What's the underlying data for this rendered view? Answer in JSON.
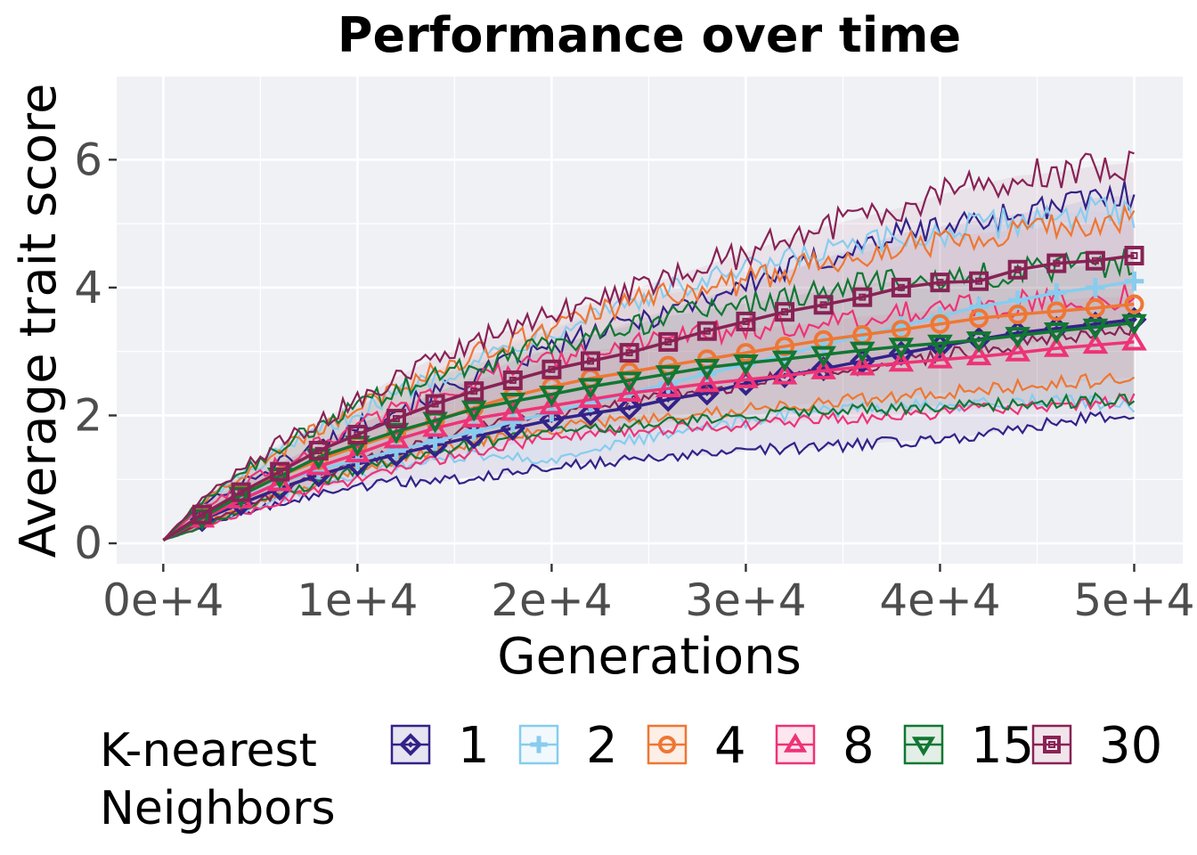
{
  "chart_data": {
    "type": "line",
    "title": "Performance over time",
    "xlabel": "Generations",
    "ylabel": "Average trait score",
    "xlim": [
      -2400,
      52500
    ],
    "ylim": [
      -0.32,
      7.3
    ],
    "x_ticks": [
      0,
      10000,
      20000,
      30000,
      40000,
      50000
    ],
    "x_tick_labels": [
      "0e+4",
      "1e+4",
      "2e+4",
      "3e+4",
      "4e+4",
      "5e+4"
    ],
    "y_ticks": [
      0,
      2,
      4,
      6
    ],
    "y_tick_labels": [
      "0",
      "2",
      "4",
      "6"
    ],
    "grid": true,
    "legend": {
      "title_lines": [
        "K-nearest",
        "Neighbors"
      ],
      "position": "bottom"
    },
    "x": [
      2000,
      4000,
      6000,
      8000,
      10000,
      12000,
      14000,
      16000,
      18000,
      20000,
      22000,
      24000,
      26000,
      28000,
      30000,
      32000,
      34000,
      36000,
      38000,
      40000,
      42000,
      44000,
      46000,
      48000,
      50000
    ],
    "series": [
      {
        "name": "1",
        "color": "#332288",
        "marker": "diamond",
        "mean": [
          0.37,
          0.62,
          0.86,
          1.07,
          1.24,
          1.39,
          1.53,
          1.67,
          1.8,
          1.93,
          2.03,
          2.12,
          2.25,
          2.35,
          2.5,
          2.62,
          2.73,
          2.85,
          2.97,
          3.08,
          3.19,
          3.29,
          3.36,
          3.43,
          3.5
        ],
        "lower": [
          0.25,
          0.45,
          0.62,
          0.76,
          0.88,
          0.97,
          0.95,
          1.05,
          1.1,
          1.2,
          1.25,
          1.3,
          1.35,
          1.38,
          1.45,
          1.48,
          1.5,
          1.55,
          1.6,
          1.62,
          1.7,
          1.8,
          1.88,
          1.98,
          1.95
        ],
        "upper": [
          0.6,
          0.95,
          1.25,
          1.55,
          1.85,
          2.1,
          2.35,
          2.6,
          2.85,
          3.05,
          3.25,
          3.45,
          3.65,
          3.85,
          4.05,
          4.25,
          4.45,
          4.65,
          4.85,
          4.95,
          5.05,
          5.15,
          5.25,
          5.4,
          5.45
        ]
      },
      {
        "name": "2",
        "color": "#88ccee",
        "marker": "plus",
        "mean": [
          0.4,
          0.7,
          0.95,
          1.15,
          1.3,
          1.45,
          1.6,
          1.75,
          1.9,
          2.05,
          2.2,
          2.35,
          2.5,
          2.65,
          2.8,
          2.95,
          3.1,
          3.25,
          3.4,
          3.55,
          3.7,
          3.8,
          3.92,
          4.0,
          4.1
        ],
        "lower": [
          0.28,
          0.5,
          0.7,
          0.9,
          1.05,
          1.2,
          1.3,
          1.4,
          1.35,
          1.3,
          1.45,
          1.6,
          1.7,
          1.8,
          1.9,
          2.0,
          2.05,
          2.1,
          2.15,
          2.15,
          2.2,
          2.2,
          2.25,
          2.2,
          2.15
        ],
        "upper": [
          0.65,
          1.05,
          1.4,
          1.75,
          2.05,
          2.35,
          2.6,
          2.85,
          3.1,
          3.35,
          3.6,
          3.8,
          3.95,
          4.1,
          4.25,
          4.4,
          4.55,
          4.65,
          4.75,
          4.85,
          4.95,
          5.05,
          5.15,
          5.2,
          5.1
        ]
      },
      {
        "name": "4",
        "color": "#ee7733",
        "marker": "circle",
        "mean": [
          0.45,
          0.78,
          1.05,
          1.3,
          1.52,
          1.72,
          1.92,
          2.12,
          2.3,
          2.45,
          2.58,
          2.68,
          2.78,
          2.88,
          2.98,
          3.08,
          3.18,
          3.26,
          3.34,
          3.43,
          3.52,
          3.58,
          3.63,
          3.68,
          3.74
        ],
        "lower": [
          0.3,
          0.55,
          0.75,
          0.95,
          1.15,
          1.3,
          1.45,
          1.6,
          1.7,
          1.8,
          1.88,
          1.92,
          1.98,
          2.05,
          2.1,
          2.15,
          2.2,
          2.25,
          2.3,
          2.35,
          2.4,
          2.45,
          2.5,
          2.55,
          2.6
        ],
        "upper": [
          0.65,
          1.05,
          1.45,
          1.8,
          2.1,
          2.45,
          2.7,
          2.95,
          3.15,
          3.35,
          3.55,
          3.75,
          3.9,
          4.0,
          4.1,
          4.25,
          4.4,
          4.55,
          4.65,
          4.75,
          4.85,
          4.9,
          4.95,
          5.0,
          5.05
        ]
      },
      {
        "name": "8",
        "color": "#ee3377",
        "marker": "triangle-up",
        "mean": [
          0.38,
          0.68,
          0.95,
          1.2,
          1.4,
          1.62,
          1.8,
          1.95,
          2.05,
          2.15,
          2.25,
          2.35,
          2.42,
          2.5,
          2.56,
          2.62,
          2.7,
          2.76,
          2.82,
          2.87,
          2.92,
          2.98,
          3.05,
          3.1,
          3.15
        ],
        "lower": [
          0.25,
          0.45,
          0.65,
          0.85,
          1.0,
          1.15,
          1.3,
          1.45,
          1.55,
          1.65,
          1.7,
          1.75,
          1.8,
          1.85,
          1.85,
          1.9,
          1.95,
          1.95,
          2.0,
          2.05,
          2.1,
          2.1,
          2.15,
          2.2,
          2.25
        ],
        "upper": [
          0.55,
          0.9,
          1.25,
          1.55,
          1.85,
          2.1,
          2.35,
          2.55,
          2.7,
          2.85,
          3.0,
          3.1,
          3.2,
          3.3,
          3.35,
          3.4,
          3.45,
          3.55,
          3.6,
          3.65,
          3.7,
          3.75,
          3.8,
          3.85,
          3.85
        ]
      },
      {
        "name": "15",
        "color": "#117733",
        "marker": "triangle-down",
        "mean": [
          0.4,
          0.75,
          1.05,
          1.35,
          1.55,
          1.75,
          1.92,
          2.1,
          2.22,
          2.33,
          2.45,
          2.55,
          2.65,
          2.75,
          2.82,
          2.88,
          2.95,
          3.02,
          3.08,
          3.13,
          3.18,
          3.25,
          3.32,
          3.38,
          3.45
        ],
        "lower": [
          0.25,
          0.5,
          0.75,
          0.95,
          1.15,
          1.3,
          1.45,
          1.55,
          1.65,
          1.75,
          1.8,
          1.85,
          1.9,
          1.95,
          2.0,
          2.05,
          2.05,
          2.1,
          2.1,
          2.15,
          2.15,
          2.2,
          2.2,
          2.25,
          2.25
        ],
        "upper": [
          0.65,
          1.1,
          1.5,
          1.85,
          2.15,
          2.4,
          2.6,
          2.8,
          2.95,
          3.1,
          3.25,
          3.4,
          3.55,
          3.65,
          3.75,
          3.85,
          3.95,
          4.05,
          4.1,
          4.15,
          4.2,
          4.25,
          4.3,
          4.35,
          4.4
        ]
      },
      {
        "name": "30",
        "color": "#882255",
        "marker": "square",
        "mean": [
          0.45,
          0.8,
          1.12,
          1.45,
          1.7,
          1.95,
          2.18,
          2.38,
          2.55,
          2.72,
          2.85,
          2.98,
          3.15,
          3.32,
          3.47,
          3.62,
          3.73,
          3.85,
          4.0,
          4.08,
          4.1,
          4.28,
          4.38,
          4.42,
          4.5
        ],
        "lower": [
          0.3,
          0.55,
          0.8,
          1.05,
          1.25,
          1.45,
          1.62,
          1.78,
          1.9,
          2.0,
          2.1,
          2.2,
          2.3,
          2.4,
          2.5,
          2.6,
          2.65,
          2.75,
          2.85,
          2.95,
          3.0,
          3.1,
          3.2,
          3.3,
          3.4
        ],
        "upper": [
          0.7,
          1.15,
          1.55,
          1.9,
          2.25,
          2.6,
          2.9,
          3.15,
          3.35,
          3.55,
          3.75,
          3.95,
          4.15,
          4.35,
          4.55,
          4.75,
          4.95,
          5.1,
          5.25,
          5.45,
          5.6,
          5.75,
          5.8,
          5.9,
          5.95
        ]
      }
    ]
  },
  "colors": {
    "panel_background": "#f0f1f5",
    "grid": "#ffffff",
    "tick_text": "#4d4d4d"
  }
}
